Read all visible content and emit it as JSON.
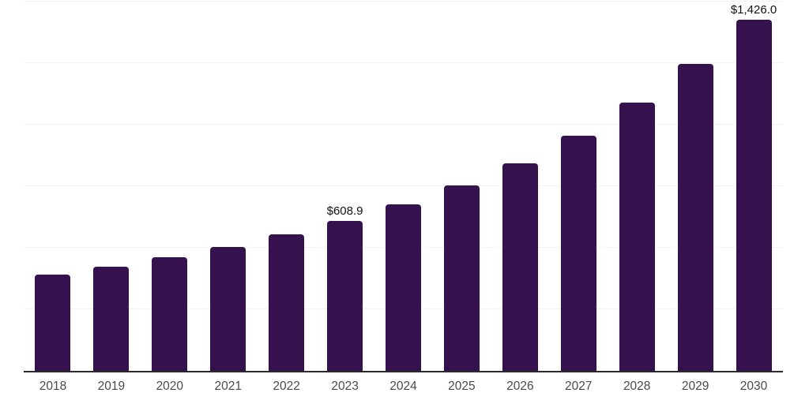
{
  "chart_data": {
    "type": "bar",
    "title": "",
    "xlabel": "",
    "ylabel": "",
    "categories": [
      "2018",
      "2019",
      "2020",
      "2021",
      "2022",
      "2023",
      "2024",
      "2025",
      "2026",
      "2027",
      "2028",
      "2029",
      "2030"
    ],
    "values": [
      391,
      422,
      463,
      502,
      556,
      608.9,
      675,
      754,
      843,
      954,
      1089,
      1247,
      1426
    ],
    "annotations": [
      {
        "category": "2023",
        "text": "$608.9"
      },
      {
        "category": "2030",
        "text": "$1,426.0"
      }
    ],
    "ylim": [
      0,
      1500
    ],
    "gridline_values": [
      250,
      500,
      750,
      1000,
      1250,
      1500
    ],
    "grid": "on",
    "legend": "none",
    "colors": {
      "bar": "#35114D",
      "axis_line": "#2b2b2b",
      "gridline": "#f2f2f2",
      "value_label": "#111111",
      "tick_label": "#4a4a4a"
    }
  }
}
